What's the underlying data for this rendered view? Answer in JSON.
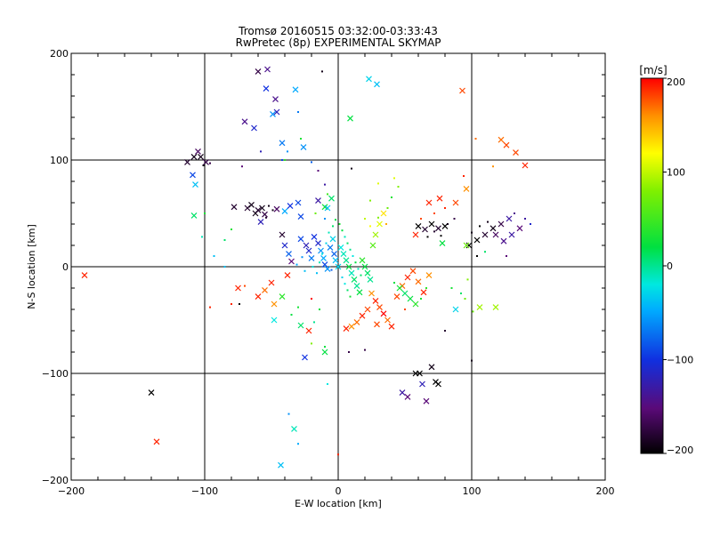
{
  "chart_data": {
    "type": "scatter",
    "title_line1": "Tromsø 20160515 03:32:00-03:33:43",
    "title_line2": "RwPretec (8p) EXPERIMENTAL SKYMAP",
    "xlabel": "E-W location [km]",
    "ylabel": "N-S location [km]",
    "xlim": [
      -200,
      200
    ],
    "ylim": [
      -200,
      200
    ],
    "x_ticks": [
      -200,
      -100,
      0,
      100,
      200
    ],
    "y_ticks": [
      -200,
      -100,
      0,
      100,
      200
    ],
    "grid": "major gridlines at ±100 and 0",
    "colorbar": {
      "label": "[m/s]",
      "range": [
        -200,
        200
      ],
      "ticks": [
        200,
        100,
        0,
        -100,
        -200
      ],
      "colormap": "rainbow: black (-200) → purple → blue → cyan → green → yellow → red (200)"
    },
    "markers": {
      "large_x": "cross markers",
      "small_dot": "small points"
    },
    "points": [
      [
        -60,
        183,
        -170,
        "x"
      ],
      [
        -53,
        185,
        -140,
        "x"
      ],
      [
        -54,
        167,
        -100,
        "x"
      ],
      [
        -47,
        157,
        -140,
        "x"
      ],
      [
        -46,
        145,
        -120,
        "x"
      ],
      [
        -49,
        143,
        -60,
        "x"
      ],
      [
        -32,
        166,
        -50,
        "x"
      ],
      [
        -30,
        145,
        -70,
        "s"
      ],
      [
        -70,
        136,
        -140,
        "x"
      ],
      [
        -63,
        130,
        -110,
        "x"
      ],
      [
        -42,
        116,
        -70,
        "x"
      ],
      [
        -26,
        112,
        -60,
        "x"
      ],
      [
        -38,
        108,
        -60,
        "s"
      ],
      [
        -42,
        100,
        -90,
        "s"
      ],
      [
        -58,
        108,
        -120,
        "s"
      ],
      [
        -72,
        94,
        -150,
        "s"
      ],
      [
        -12,
        183,
        -190,
        "s"
      ],
      [
        23,
        176,
        -30,
        "x"
      ],
      [
        29,
        171,
        -40,
        "x"
      ],
      [
        9,
        139,
        20,
        "x"
      ],
      [
        93,
        165,
        180,
        "x"
      ],
      [
        122,
        119,
        170,
        "x"
      ],
      [
        126,
        114,
        180,
        "x"
      ],
      [
        133,
        107,
        180,
        "x"
      ],
      [
        140,
        95,
        190,
        "x"
      ],
      [
        103,
        120,
        170,
        "s"
      ],
      [
        116,
        94,
        160,
        "s"
      ],
      [
        -113,
        98,
        -180,
        "x"
      ],
      [
        -108,
        103,
        -190,
        "x"
      ],
      [
        -105,
        108,
        -160,
        "x"
      ],
      [
        -103,
        103,
        -190,
        "x"
      ],
      [
        -99,
        98,
        -170,
        "x"
      ],
      [
        -109,
        86,
        -90,
        "x"
      ],
      [
        -107,
        77,
        -40,
        "x"
      ],
      [
        -101,
        95,
        -190,
        "s"
      ],
      [
        -96,
        97,
        -170,
        "s"
      ],
      [
        -108,
        48,
        10,
        "x"
      ],
      [
        -100,
        50,
        30,
        "s"
      ],
      [
        -78,
        56,
        -180,
        "x"
      ],
      [
        -68,
        55,
        -180,
        "x"
      ],
      [
        -65,
        58,
        -190,
        "x"
      ],
      [
        -62,
        50,
        -190,
        "x"
      ],
      [
        -60,
        53,
        -180,
        "x"
      ],
      [
        -57,
        55,
        -190,
        "x"
      ],
      [
        -55,
        49,
        -170,
        "x"
      ],
      [
        -58,
        42,
        -120,
        "x"
      ],
      [
        -52,
        57,
        -190,
        "s"
      ],
      [
        -54,
        46,
        -180,
        "s"
      ],
      [
        -49,
        53,
        -190,
        "s"
      ],
      [
        -46,
        54,
        -160,
        "x"
      ],
      [
        -40,
        52,
        -50,
        "x"
      ],
      [
        -36,
        57,
        -100,
        "x"
      ],
      [
        -30,
        60,
        -90,
        "x"
      ],
      [
        -28,
        47,
        -90,
        "x"
      ],
      [
        -15,
        62,
        -130,
        "x"
      ],
      [
        -10,
        56,
        30,
        "x"
      ],
      [
        -5,
        64,
        10,
        "x"
      ],
      [
        -8,
        55,
        -40,
        "x"
      ],
      [
        -17,
        50,
        70,
        "s"
      ],
      [
        -10,
        45,
        -60,
        "s"
      ],
      [
        -42,
        30,
        -180,
        "x"
      ],
      [
        -40,
        20,
        -110,
        "x"
      ],
      [
        -37,
        12,
        -80,
        "x"
      ],
      [
        -35,
        5,
        -150,
        "x"
      ],
      [
        -28,
        26,
        -90,
        "x"
      ],
      [
        -24,
        20,
        -120,
        "x"
      ],
      [
        -22,
        15,
        -110,
        "x"
      ],
      [
        -20,
        8,
        -70,
        "x"
      ],
      [
        -18,
        28,
        -100,
        "x"
      ],
      [
        -15,
        22,
        -110,
        "x"
      ],
      [
        -13,
        15,
        -60,
        "x"
      ],
      [
        -11,
        8,
        -50,
        "x"
      ],
      [
        -10,
        2,
        -90,
        "x"
      ],
      [
        -8,
        -2,
        -60,
        "x"
      ],
      [
        -6,
        18,
        -70,
        "x"
      ],
      [
        -4,
        26,
        -30,
        "x"
      ],
      [
        -3,
        12,
        -80,
        "x"
      ],
      [
        -2,
        6,
        -40,
        "x"
      ],
      [
        0,
        0,
        -30,
        "x"
      ],
      [
        -5,
        -3,
        -80,
        "s"
      ],
      [
        -31,
        2,
        -50,
        "s"
      ],
      [
        -27,
        9,
        -60,
        "s"
      ],
      [
        -25,
        -4,
        -40,
        "s"
      ],
      [
        -19,
        0,
        -20,
        "s"
      ],
      [
        -16,
        -6,
        -40,
        "s"
      ],
      [
        -14,
        4,
        -10,
        "s"
      ],
      [
        -12,
        12,
        -20,
        "s"
      ],
      [
        -9,
        22,
        -30,
        "s"
      ],
      [
        -7,
        32,
        -10,
        "s"
      ],
      [
        -4,
        38,
        10,
        "s"
      ],
      [
        -2,
        44,
        20,
        "s"
      ],
      [
        1,
        40,
        30,
        "s"
      ],
      [
        3,
        34,
        20,
        "s"
      ],
      [
        5,
        28,
        -10,
        "s"
      ],
      [
        7,
        22,
        10,
        "s"
      ],
      [
        9,
        16,
        0,
        "s"
      ],
      [
        11,
        10,
        -20,
        "s"
      ],
      [
        13,
        4,
        20,
        "s"
      ],
      [
        15,
        -2,
        -10,
        "s"
      ],
      [
        17,
        -8,
        10,
        "s"
      ],
      [
        2,
        18,
        -20,
        "x"
      ],
      [
        4,
        12,
        -10,
        "x"
      ],
      [
        6,
        6,
        0,
        "x"
      ],
      [
        8,
        0,
        20,
        "x"
      ],
      [
        10,
        -6,
        -10,
        "x"
      ],
      [
        12,
        -12,
        10,
        "x"
      ],
      [
        14,
        -18,
        0,
        "x"
      ],
      [
        16,
        -24,
        20,
        "x"
      ],
      [
        3,
        -10,
        -30,
        "s"
      ],
      [
        5,
        -16,
        -20,
        "s"
      ],
      [
        7,
        -22,
        10,
        "s"
      ],
      [
        9,
        -28,
        30,
        "s"
      ],
      [
        18,
        6,
        40,
        "x"
      ],
      [
        20,
        0,
        20,
        "x"
      ],
      [
        22,
        -6,
        10,
        "x"
      ],
      [
        24,
        -12,
        0,
        "x"
      ],
      [
        26,
        20,
        60,
        "x"
      ],
      [
        28,
        30,
        90,
        "x"
      ],
      [
        31,
        40,
        110,
        "x"
      ],
      [
        34,
        50,
        130,
        "x"
      ],
      [
        20,
        45,
        100,
        "s"
      ],
      [
        24,
        38,
        120,
        "s"
      ],
      [
        30,
        46,
        80,
        "s"
      ],
      [
        36,
        40,
        150,
        "s"
      ],
      [
        25,
        -25,
        160,
        "x"
      ],
      [
        28,
        -32,
        190,
        "x"
      ],
      [
        31,
        -38,
        180,
        "x"
      ],
      [
        34,
        -44,
        200,
        "x"
      ],
      [
        37,
        -50,
        170,
        "x"
      ],
      [
        40,
        -56,
        190,
        "x"
      ],
      [
        22,
        -40,
        180,
        "x"
      ],
      [
        18,
        -46,
        190,
        "x"
      ],
      [
        14,
        -52,
        170,
        "x"
      ],
      [
        10,
        -56,
        160,
        "x"
      ],
      [
        6,
        -58,
        190,
        "x"
      ],
      [
        29,
        -54,
        180,
        "x"
      ],
      [
        44,
        -28,
        180,
        "x"
      ],
      [
        48,
        -18,
        170,
        "x"
      ],
      [
        52,
        -10,
        190,
        "x"
      ],
      [
        56,
        -4,
        180,
        "x"
      ],
      [
        60,
        -14,
        170,
        "x"
      ],
      [
        64,
        -24,
        190,
        "x"
      ],
      [
        68,
        -8,
        160,
        "x"
      ],
      [
        50,
        -40,
        180,
        "s"
      ],
      [
        58,
        -35,
        40,
        "x"
      ],
      [
        54,
        -30,
        20,
        "x"
      ],
      [
        50,
        -25,
        10,
        "x"
      ],
      [
        46,
        -20,
        30,
        "x"
      ],
      [
        62,
        -30,
        30,
        "s"
      ],
      [
        66,
        -20,
        40,
        "s"
      ],
      [
        42,
        -15,
        20,
        "s"
      ],
      [
        -38,
        -8,
        190,
        "x"
      ],
      [
        -50,
        -15,
        190,
        "x"
      ],
      [
        -55,
        -22,
        170,
        "x"
      ],
      [
        -60,
        -28,
        190,
        "x"
      ],
      [
        -48,
        -35,
        160,
        "x"
      ],
      [
        -70,
        -18,
        180,
        "s"
      ],
      [
        -74,
        -35,
        -200,
        "s"
      ],
      [
        -42,
        -28,
        40,
        "x"
      ],
      [
        -48,
        -50,
        -20,
        "x"
      ],
      [
        -35,
        -45,
        20,
        "s"
      ],
      [
        -30,
        -38,
        30,
        "s"
      ],
      [
        -28,
        -55,
        10,
        "x"
      ],
      [
        -22,
        -60,
        190,
        "x"
      ],
      [
        -18,
        -52,
        0,
        "s"
      ],
      [
        -14,
        -40,
        20,
        "s"
      ],
      [
        -25,
        -85,
        -100,
        "x"
      ],
      [
        -20,
        -72,
        80,
        "s"
      ],
      [
        -10,
        -75,
        20,
        "s"
      ],
      [
        -10,
        -80,
        20,
        "x"
      ],
      [
        8,
        -80,
        -170,
        "s"
      ],
      [
        20,
        -78,
        -170,
        "s"
      ],
      [
        -75,
        -20,
        190,
        "x"
      ],
      [
        -80,
        -35,
        190,
        "s"
      ],
      [
        -96,
        -38,
        190,
        "s"
      ],
      [
        -20,
        -30,
        200,
        "s"
      ],
      [
        48,
        -118,
        -130,
        "x"
      ],
      [
        52,
        -122,
        -150,
        "x"
      ],
      [
        58,
        -100,
        -200,
        "x"
      ],
      [
        61,
        -100,
        -200,
        "x"
      ],
      [
        63,
        -110,
        -120,
        "x"
      ],
      [
        66,
        -126,
        -150,
        "x"
      ],
      [
        73,
        -108,
        -200,
        "x"
      ],
      [
        75,
        -110,
        -200,
        "x"
      ],
      [
        70,
        -94,
        -190,
        "x"
      ],
      [
        80,
        -60,
        -180,
        "s"
      ],
      [
        100,
        -88,
        -190,
        "s"
      ],
      [
        60,
        38,
        -200,
        "x"
      ],
      [
        65,
        35,
        -180,
        "x"
      ],
      [
        70,
        40,
        -200,
        "x"
      ],
      [
        75,
        36,
        -180,
        "x"
      ],
      [
        80,
        38,
        -200,
        "x"
      ],
      [
        58,
        30,
        190,
        "x"
      ],
      [
        67,
        28,
        -200,
        "s"
      ],
      [
        72,
        33,
        -180,
        "s"
      ],
      [
        77,
        29,
        -200,
        "s"
      ],
      [
        82,
        40,
        -190,
        "s"
      ],
      [
        87,
        45,
        -170,
        "s"
      ],
      [
        62,
        45,
        180,
        "s"
      ],
      [
        68,
        60,
        190,
        "x"
      ],
      [
        76,
        64,
        190,
        "x"
      ],
      [
        80,
        55,
        190,
        "s"
      ],
      [
        72,
        50,
        180,
        "s"
      ],
      [
        94,
        85,
        190,
        "s"
      ],
      [
        96,
        73,
        160,
        "x"
      ],
      [
        88,
        60,
        180,
        "x"
      ],
      [
        78,
        22,
        20,
        "x"
      ],
      [
        98,
        20,
        -200,
        "x"
      ],
      [
        104,
        25,
        -200,
        "x"
      ],
      [
        110,
        30,
        -180,
        "x"
      ],
      [
        116,
        36,
        -190,
        "x"
      ],
      [
        122,
        40,
        -170,
        "x"
      ],
      [
        100,
        32,
        -190,
        "s"
      ],
      [
        106,
        38,
        -200,
        "s"
      ],
      [
        112,
        42,
        -190,
        "s"
      ],
      [
        118,
        30,
        -160,
        "x"
      ],
      [
        124,
        24,
        -140,
        "x"
      ],
      [
        130,
        30,
        -130,
        "x"
      ],
      [
        136,
        36,
        -150,
        "x"
      ],
      [
        140,
        45,
        -130,
        "s"
      ],
      [
        144,
        40,
        -110,
        "s"
      ],
      [
        128,
        45,
        -130,
        "x"
      ],
      [
        132,
        50,
        -140,
        "s"
      ],
      [
        96,
        20,
        70,
        "x"
      ],
      [
        104,
        10,
        -200,
        "s"
      ],
      [
        110,
        14,
        10,
        "s"
      ],
      [
        126,
        10,
        -150,
        "s"
      ],
      [
        106,
        -38,
        90,
        "x"
      ],
      [
        118,
        -38,
        90,
        "x"
      ],
      [
        95,
        -30,
        70,
        "s"
      ],
      [
        88,
        -40,
        -30,
        "x"
      ],
      [
        101,
        -42,
        70,
        "s"
      ],
      [
        97,
        -12,
        80,
        "s"
      ],
      [
        85,
        -20,
        30,
        "s"
      ],
      [
        92,
        -25,
        10,
        "s"
      ],
      [
        -190,
        -8,
        190,
        "x"
      ],
      [
        -140,
        -118,
        -200,
        "x"
      ],
      [
        -136,
        -164,
        190,
        "x"
      ],
      [
        -43,
        -186,
        -40,
        "x"
      ],
      [
        -33,
        -152,
        -10,
        "x"
      ],
      [
        -37,
        -138,
        -60,
        "s"
      ],
      [
        -30,
        -166,
        -50,
        "s"
      ],
      [
        0,
        -176,
        190,
        "s"
      ],
      [
        -8,
        -110,
        -20,
        "s"
      ],
      [
        -102,
        28,
        -10,
        "s"
      ],
      [
        -93,
        10,
        -40,
        "s"
      ],
      [
        -85,
        0,
        -40,
        "s"
      ],
      [
        -85,
        25,
        10,
        "s"
      ],
      [
        -80,
        35,
        30,
        "s"
      ],
      [
        -15,
        90,
        -150,
        "s"
      ],
      [
        -10,
        77,
        -130,
        "s"
      ],
      [
        -8,
        68,
        50,
        "s"
      ],
      [
        10,
        92,
        -190,
        "s"
      ],
      [
        37,
        55,
        70,
        "s"
      ],
      [
        45,
        75,
        80,
        "s"
      ],
      [
        42,
        83,
        110,
        "s"
      ],
      [
        40,
        65,
        30,
        "s"
      ],
      [
        30,
        78,
        110,
        "s"
      ],
      [
        24,
        62,
        80,
        "s"
      ],
      [
        -40,
        100,
        40,
        "s"
      ],
      [
        -28,
        120,
        30,
        "s"
      ],
      [
        -20,
        98,
        -80,
        "s"
      ]
    ]
  }
}
